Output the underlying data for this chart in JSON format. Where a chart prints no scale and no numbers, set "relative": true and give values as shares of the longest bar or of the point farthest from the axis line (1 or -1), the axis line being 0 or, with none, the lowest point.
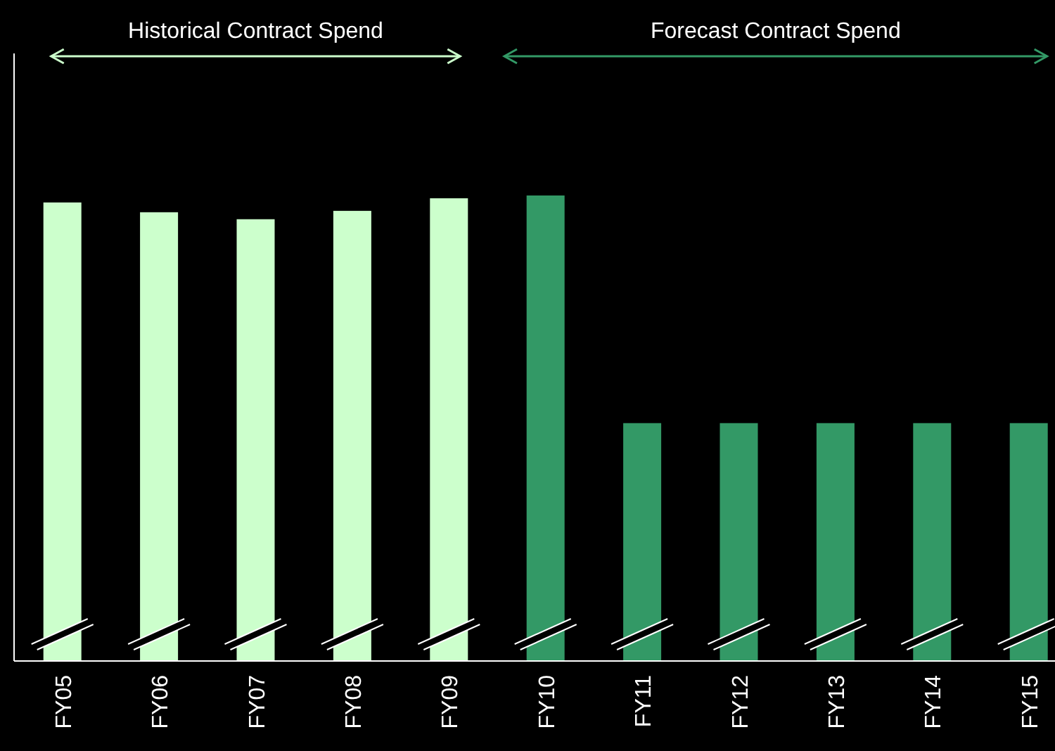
{
  "chart_data": {
    "type": "bar",
    "relative": true,
    "categories": [
      "FY05",
      "FY06",
      "FY07",
      "FY08",
      "FY09",
      "FY10",
      "FY11",
      "FY12",
      "FY13",
      "FY14",
      "FY15"
    ],
    "values": [
      0.985,
      0.964,
      0.949,
      0.967,
      0.994,
      1,
      0.511,
      0.511,
      0.511,
      0.511,
      0.511
    ],
    "colors": [
      "#ccffcc",
      "#ccffcc",
      "#ccffcc",
      "#ccffcc",
      "#ccffcc",
      "#339966",
      "#339966",
      "#339966",
      "#339966",
      "#339966",
      "#339966"
    ],
    "annotations": [
      "Historical Contract Spend",
      "Forecast Contract Spend"
    ]
  }
}
